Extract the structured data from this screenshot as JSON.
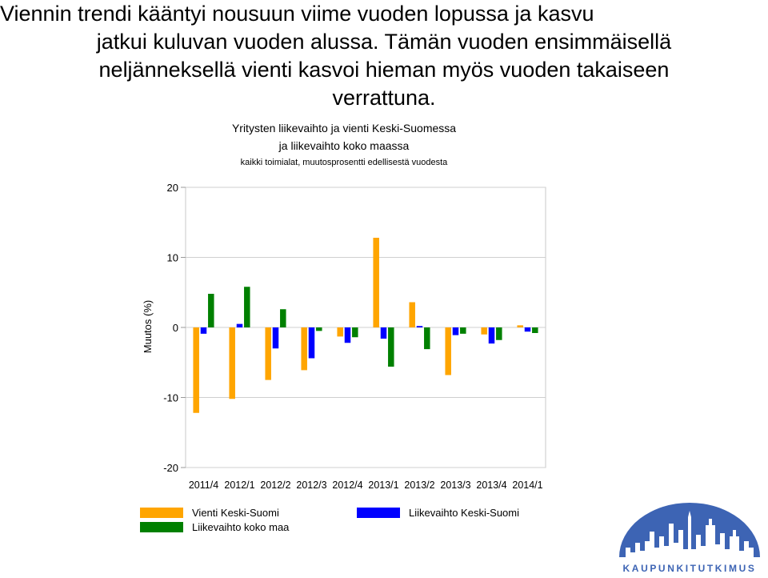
{
  "headline": {
    "lines": [
      "Viennin trendi kääntyi nousuun viime vuoden lopussa ja kasvu",
      "jatkui kuluvan vuoden alussa. Tämän vuoden ensimmäisellä",
      "neljänneksellä vienti kasvoi hieman myös vuoden takaiseen",
      "verrattuna."
    ]
  },
  "chart_data": {
    "type": "bar",
    "title": "Yritysten liikevaihto ja vienti Keski-Suomessa",
    "title_line2": "ja liikevaihto koko maassa",
    "subtitle": "kaikki toimialat, muutosprosentti edellisestä vuodesta",
    "ylabel": "Muutos (%)",
    "xlabel": "",
    "ylim": [
      -20,
      20
    ],
    "yticks": [
      20,
      10,
      0,
      -10,
      -20
    ],
    "grid": true,
    "legend_position": "bottom",
    "categories": [
      "2011/4",
      "2012/1",
      "2012/2",
      "2012/3",
      "2012/4",
      "2013/1",
      "2013/2",
      "2013/3",
      "2013/4",
      "2014/1"
    ],
    "series": [
      {
        "name": "Vienti Keski-Suomi",
        "color": "#FFA500",
        "values": [
          -12.2,
          -10.2,
          -7.5,
          -6.1,
          -1.3,
          12.8,
          3.6,
          -6.8,
          -1.0,
          0.3
        ]
      },
      {
        "name": "Liikevaihto Keski-Suomi",
        "color": "#0000FF",
        "values": [
          -0.9,
          0.5,
          -3.0,
          -4.4,
          -2.2,
          -1.6,
          0.2,
          -1.1,
          -2.3,
          -0.6
        ]
      },
      {
        "name": "Liikevaihto koko maa",
        "color": "#008000",
        "values": [
          4.8,
          5.8,
          2.6,
          -0.5,
          -1.4,
          -5.6,
          -3.1,
          -0.9,
          -1.8,
          -0.8
        ]
      }
    ]
  },
  "legend": {
    "items": [
      {
        "label": "Vienti Keski-Suomi",
        "color": "#FFA500"
      },
      {
        "label": "Liikevaihto Keski-Suomi",
        "color": "#0000FF"
      },
      {
        "label": "Liikevaihto koko maa",
        "color": "#008000"
      }
    ]
  },
  "logo": {
    "text": "KAUPUNKITUTKIMUS",
    "color": "#3D64B4"
  }
}
